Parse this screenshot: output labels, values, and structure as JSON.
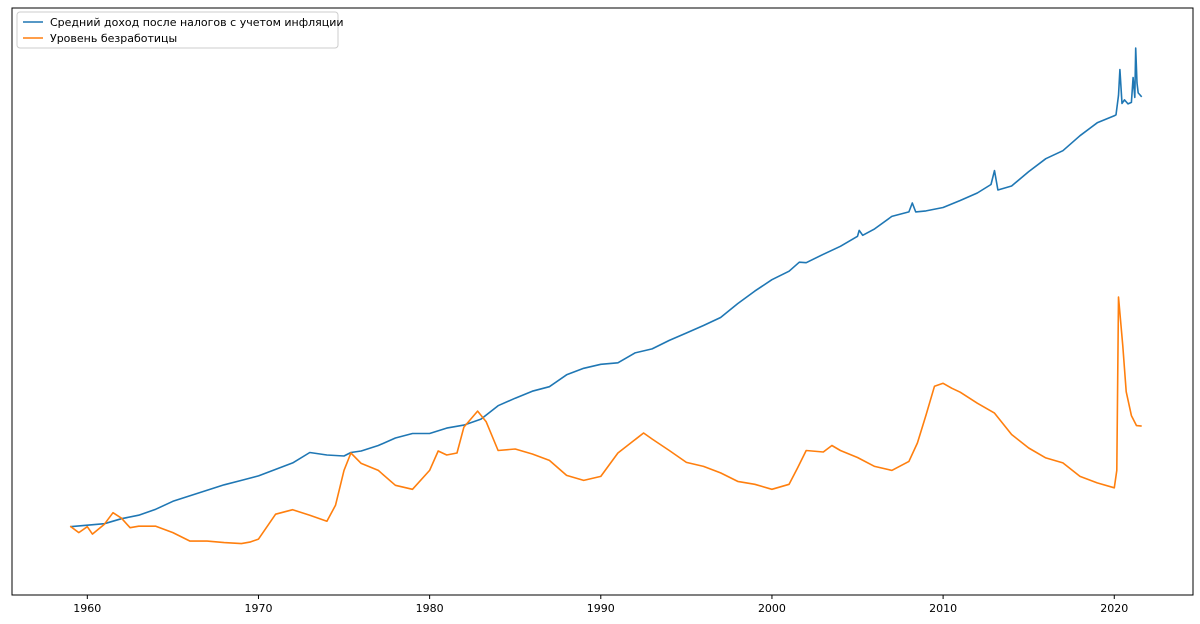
{
  "chart_data": {
    "type": "line",
    "title": "",
    "xlabel": "",
    "ylabel": "",
    "xlim": [
      1955.6,
      2024.6
    ],
    "ylim": [
      0,
      1
    ],
    "grid": false,
    "y_tick_labels": "none",
    "x_ticks": [
      {
        "value": 1960,
        "label": "1960"
      },
      {
        "value": 1970,
        "label": "1970"
      },
      {
        "value": 1980,
        "label": "1980"
      },
      {
        "value": 1990,
        "label": "1990"
      },
      {
        "value": 2000,
        "label": "2000"
      },
      {
        "value": 2010,
        "label": "2010"
      },
      {
        "value": 2020,
        "label": "2020"
      }
    ],
    "legend": {
      "position": "top-left",
      "entries": [
        {
          "label": "Средний доход после налогов с учетом инфляции",
          "color": "#1f77b4"
        },
        {
          "label": "Уровень безработицы",
          "color": "#ff7f0e"
        }
      ]
    },
    "series": [
      {
        "name": "Средний доход после налогов с учетом инфляции",
        "color": "#1f77b4",
        "points": [
          [
            1959.0,
            0.087
          ],
          [
            1960.0,
            0.09
          ],
          [
            1961.0,
            0.093
          ],
          [
            1962.0,
            0.103
          ],
          [
            1963.0,
            0.11
          ],
          [
            1964.0,
            0.122
          ],
          [
            1965.0,
            0.138
          ],
          [
            1966.0,
            0.149
          ],
          [
            1967.0,
            0.16
          ],
          [
            1968.0,
            0.171
          ],
          [
            1969.0,
            0.18
          ],
          [
            1970.0,
            0.189
          ],
          [
            1971.0,
            0.202
          ],
          [
            1972.0,
            0.215
          ],
          [
            1973.0,
            0.236
          ],
          [
            1974.0,
            0.231
          ],
          [
            1975.0,
            0.229
          ],
          [
            1975.4,
            0.236
          ],
          [
            1976.0,
            0.239
          ],
          [
            1977.0,
            0.25
          ],
          [
            1978.0,
            0.265
          ],
          [
            1979.0,
            0.274
          ],
          [
            1980.0,
            0.274
          ],
          [
            1981.0,
            0.285
          ],
          [
            1982.0,
            0.291
          ],
          [
            1983.0,
            0.303
          ],
          [
            1984.0,
            0.33
          ],
          [
            1985.0,
            0.345
          ],
          [
            1986.0,
            0.359
          ],
          [
            1987.0,
            0.368
          ],
          [
            1988.0,
            0.392
          ],
          [
            1989.0,
            0.405
          ],
          [
            1990.0,
            0.413
          ],
          [
            1991.0,
            0.416
          ],
          [
            1992.0,
            0.436
          ],
          [
            1993.0,
            0.444
          ],
          [
            1994.0,
            0.461
          ],
          [
            1995.0,
            0.476
          ],
          [
            1996.0,
            0.491
          ],
          [
            1997.0,
            0.507
          ],
          [
            1998.0,
            0.535
          ],
          [
            1999.0,
            0.56
          ],
          [
            2000.0,
            0.583
          ],
          [
            2001.0,
            0.6
          ],
          [
            2001.6,
            0.618
          ],
          [
            2002.0,
            0.617
          ],
          [
            2003.0,
            0.634
          ],
          [
            2004.0,
            0.65
          ],
          [
            2005.0,
            0.67
          ],
          [
            2005.1,
            0.682
          ],
          [
            2005.3,
            0.672
          ],
          [
            2006.0,
            0.685
          ],
          [
            2007.0,
            0.71
          ],
          [
            2008.0,
            0.719
          ],
          [
            2008.2,
            0.737
          ],
          [
            2008.4,
            0.719
          ],
          [
            2009.0,
            0.721
          ],
          [
            2010.0,
            0.728
          ],
          [
            2011.0,
            0.742
          ],
          [
            2012.0,
            0.757
          ],
          [
            2012.8,
            0.774
          ],
          [
            2013.0,
            0.802
          ],
          [
            2013.2,
            0.763
          ],
          [
            2014.0,
            0.771
          ],
          [
            2015.0,
            0.8
          ],
          [
            2016.0,
            0.826
          ],
          [
            2017.0,
            0.842
          ],
          [
            2018.0,
            0.872
          ],
          [
            2019.0,
            0.898
          ],
          [
            2020.0,
            0.912
          ],
          [
            2020.1,
            0.914
          ],
          [
            2020.25,
            0.953
          ],
          [
            2020.33,
            1.005
          ],
          [
            2020.45,
            0.937
          ],
          [
            2020.6,
            0.944
          ],
          [
            2020.8,
            0.936
          ],
          [
            2021.0,
            0.939
          ],
          [
            2021.1,
            0.989
          ],
          [
            2021.2,
            0.949
          ],
          [
            2021.25,
            1.048
          ],
          [
            2021.33,
            0.978
          ],
          [
            2021.4,
            0.958
          ],
          [
            2021.6,
            0.95
          ]
        ]
      },
      {
        "name": "Уровень безработицы",
        "color": "#ff7f0e",
        "points": [
          [
            1959.0,
            0.088
          ],
          [
            1959.5,
            0.075
          ],
          [
            1960.0,
            0.087
          ],
          [
            1960.3,
            0.072
          ],
          [
            1961.0,
            0.092
          ],
          [
            1961.5,
            0.115
          ],
          [
            1962.0,
            0.104
          ],
          [
            1962.5,
            0.085
          ],
          [
            1963.0,
            0.088
          ],
          [
            1964.0,
            0.088
          ],
          [
            1965.0,
            0.075
          ],
          [
            1966.0,
            0.058
          ],
          [
            1967.0,
            0.058
          ],
          [
            1968.0,
            0.055
          ],
          [
            1969.0,
            0.053
          ],
          [
            1969.5,
            0.056
          ],
          [
            1970.0,
            0.062
          ],
          [
            1971.0,
            0.112
          ],
          [
            1972.0,
            0.121
          ],
          [
            1973.0,
            0.11
          ],
          [
            1974.0,
            0.098
          ],
          [
            1974.5,
            0.13
          ],
          [
            1975.0,
            0.2
          ],
          [
            1975.4,
            0.235
          ],
          [
            1976.0,
            0.214
          ],
          [
            1977.0,
            0.2
          ],
          [
            1978.0,
            0.17
          ],
          [
            1979.0,
            0.162
          ],
          [
            1980.0,
            0.2
          ],
          [
            1980.5,
            0.239
          ],
          [
            1981.0,
            0.231
          ],
          [
            1981.6,
            0.235
          ],
          [
            1982.0,
            0.287
          ],
          [
            1982.8,
            0.319
          ],
          [
            1983.3,
            0.298
          ],
          [
            1984.0,
            0.24
          ],
          [
            1985.0,
            0.243
          ],
          [
            1986.0,
            0.233
          ],
          [
            1987.0,
            0.22
          ],
          [
            1988.0,
            0.19
          ],
          [
            1989.0,
            0.18
          ],
          [
            1990.0,
            0.188
          ],
          [
            1991.0,
            0.235
          ],
          [
            1992.5,
            0.275
          ],
          [
            1993.0,
            0.263
          ],
          [
            1994.0,
            0.24
          ],
          [
            1995.0,
            0.216
          ],
          [
            1996.0,
            0.208
          ],
          [
            1997.0,
            0.195
          ],
          [
            1998.0,
            0.178
          ],
          [
            1999.0,
            0.172
          ],
          [
            2000.0,
            0.162
          ],
          [
            2001.0,
            0.172
          ],
          [
            2001.5,
            0.205
          ],
          [
            2002.0,
            0.24
          ],
          [
            2003.0,
            0.237
          ],
          [
            2003.5,
            0.25
          ],
          [
            2004.0,
            0.24
          ],
          [
            2005.0,
            0.226
          ],
          [
            2006.0,
            0.208
          ],
          [
            2007.0,
            0.2
          ],
          [
            2008.0,
            0.218
          ],
          [
            2008.5,
            0.255
          ],
          [
            2009.0,
            0.311
          ],
          [
            2009.5,
            0.369
          ],
          [
            2010.0,
            0.375
          ],
          [
            2010.5,
            0.365
          ],
          [
            2011.0,
            0.357
          ],
          [
            2012.0,
            0.335
          ],
          [
            2013.0,
            0.315
          ],
          [
            2014.0,
            0.272
          ],
          [
            2015.0,
            0.245
          ],
          [
            2016.0,
            0.225
          ],
          [
            2017.0,
            0.215
          ],
          [
            2018.0,
            0.188
          ],
          [
            2019.0,
            0.175
          ],
          [
            2020.0,
            0.165
          ],
          [
            2020.15,
            0.2
          ],
          [
            2020.25,
            0.548
          ],
          [
            2020.5,
            0.45
          ],
          [
            2020.7,
            0.358
          ],
          [
            2021.0,
            0.31
          ],
          [
            2021.3,
            0.29
          ],
          [
            2021.6,
            0.289
          ]
        ]
      }
    ]
  }
}
